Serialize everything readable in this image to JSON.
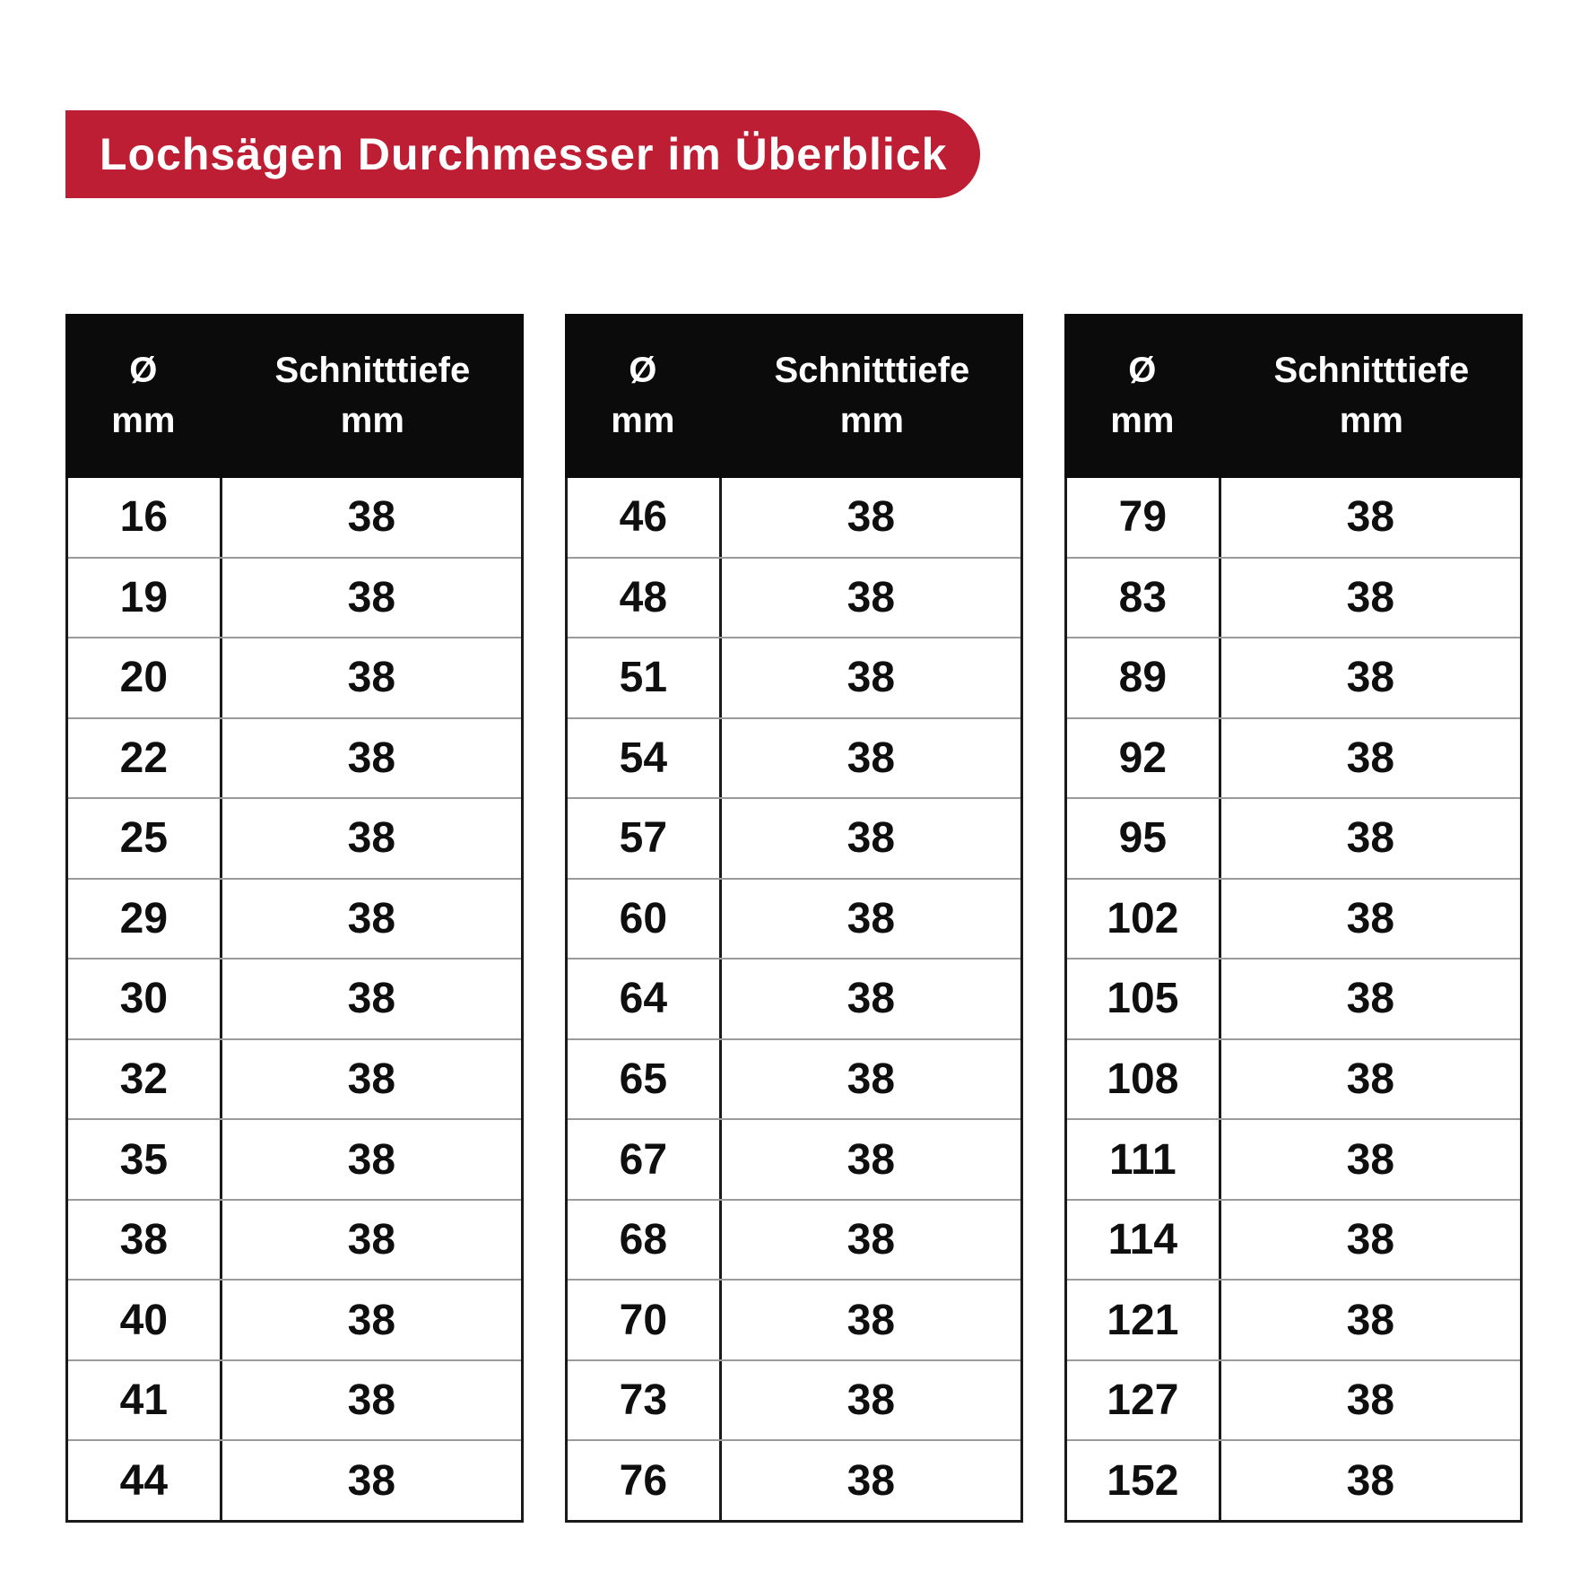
{
  "banner": {
    "label": "Lochsägen Durchmesser im Überblick"
  },
  "colors": {
    "accent_red": "#BE1E33",
    "banner_text": "#FFFFFF",
    "header_bg": "#0B0B0B",
    "table_border": "#1A1A1A",
    "row_divider": "#9A9A9A",
    "cell_text": "#0F0F0F",
    "page_bg": "#FFFFFF"
  },
  "table_header": {
    "diameter": [
      "Ø",
      "mm"
    ],
    "depth": [
      "Schnitttiefe",
      "mm"
    ]
  },
  "chart_data": [
    {
      "type": "table",
      "title": "Lochsägen Durchmesser im Überblick",
      "columns": [
        "Ø mm",
        "Schnitttiefe mm"
      ],
      "rows": [
        [
          16,
          38
        ],
        [
          19,
          38
        ],
        [
          20,
          38
        ],
        [
          22,
          38
        ],
        [
          25,
          38
        ],
        [
          29,
          38
        ],
        [
          30,
          38
        ],
        [
          32,
          38
        ],
        [
          35,
          38
        ],
        [
          38,
          38
        ],
        [
          40,
          38
        ],
        [
          41,
          38
        ],
        [
          44,
          38
        ]
      ]
    },
    {
      "type": "table",
      "columns": [
        "Ø mm",
        "Schnitttiefe mm"
      ],
      "rows": [
        [
          46,
          38
        ],
        [
          48,
          38
        ],
        [
          51,
          38
        ],
        [
          54,
          38
        ],
        [
          57,
          38
        ],
        [
          60,
          38
        ],
        [
          64,
          38
        ],
        [
          65,
          38
        ],
        [
          67,
          38
        ],
        [
          68,
          38
        ],
        [
          70,
          38
        ],
        [
          73,
          38
        ],
        [
          76,
          38
        ]
      ]
    },
    {
      "type": "table",
      "columns": [
        "Ø mm",
        "Schnitttiefe mm"
      ],
      "rows": [
        [
          79,
          38
        ],
        [
          83,
          38
        ],
        [
          89,
          38
        ],
        [
          92,
          38
        ],
        [
          95,
          38
        ],
        [
          102,
          38
        ],
        [
          105,
          38
        ],
        [
          108,
          38
        ],
        [
          111,
          38
        ],
        [
          114,
          38
        ],
        [
          121,
          38
        ],
        [
          127,
          38
        ],
        [
          152,
          38
        ]
      ]
    }
  ]
}
